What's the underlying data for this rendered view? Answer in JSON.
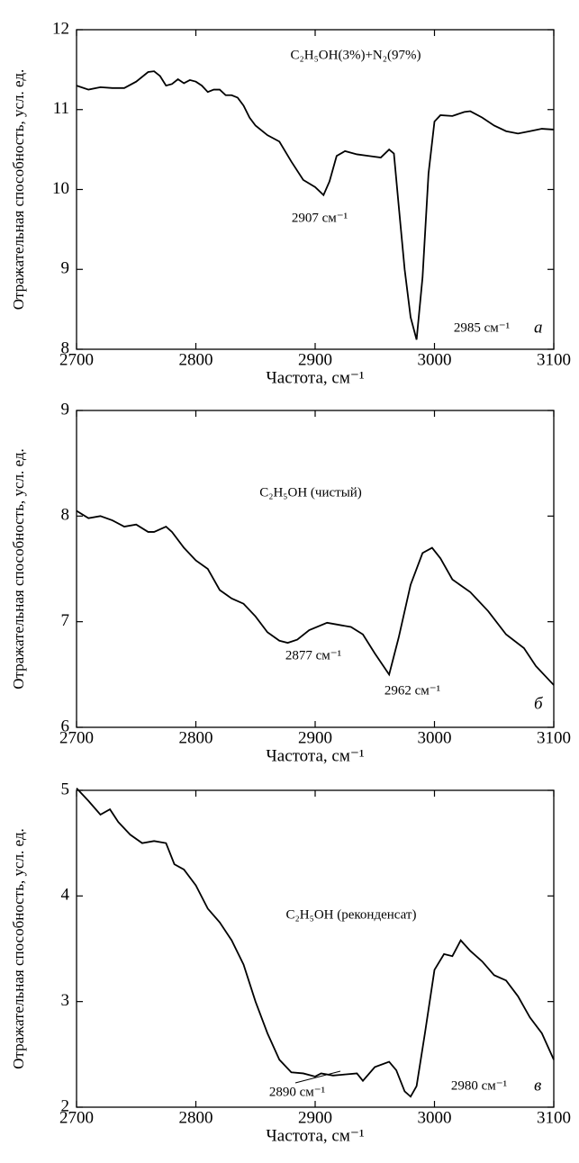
{
  "chart_data": [
    {
      "type": "line",
      "panel_label": "а",
      "annotations": [
        "C₂H₅OH(3%)+N₂(97%)",
        "2907 см⁻¹",
        "2985 см⁻¹"
      ],
      "xlabel": "Частота, см⁻¹",
      "ylabel": "Отражательная способность, усл. ед.",
      "xlim": [
        2700,
        3100
      ],
      "xticks": [
        2700,
        2800,
        2900,
        3000,
        3100
      ],
      "ylim": [
        8,
        12
      ],
      "yticks": [
        8,
        9,
        10,
        11,
        12
      ],
      "color": "#000000",
      "x": [
        2700,
        2710,
        2720,
        2730,
        2740,
        2750,
        2760,
        2765,
        2770,
        2775,
        2780,
        2785,
        2790,
        2795,
        2800,
        2805,
        2810,
        2815,
        2820,
        2825,
        2830,
        2835,
        2840,
        2845,
        2850,
        2860,
        2870,
        2880,
        2890,
        2900,
        2907,
        2912,
        2918,
        2925,
        2935,
        2945,
        2955,
        2962,
        2966,
        2970,
        2975,
        2980,
        2985,
        2990,
        2995,
        3000,
        3005,
        3015,
        3025,
        3030,
        3040,
        3050,
        3060,
        3070,
        3080,
        3090,
        3100
      ],
      "values": [
        11.3,
        11.25,
        11.28,
        11.27,
        11.27,
        11.35,
        11.47,
        11.48,
        11.42,
        11.3,
        11.32,
        11.38,
        11.33,
        11.37,
        11.35,
        11.3,
        11.22,
        11.25,
        11.25,
        11.18,
        11.18,
        11.15,
        11.05,
        10.9,
        10.8,
        10.68,
        10.6,
        10.35,
        10.12,
        10.03,
        9.93,
        10.1,
        10.42,
        10.48,
        10.44,
        10.42,
        10.4,
        10.5,
        10.45,
        9.8,
        9.0,
        8.4,
        8.12,
        8.9,
        10.2,
        10.85,
        10.93,
        10.92,
        10.97,
        10.98,
        10.9,
        10.8,
        10.73,
        10.7,
        10.73,
        10.76,
        10.75
      ]
    },
    {
      "type": "line",
      "panel_label": "б",
      "annotations": [
        "C₂H₅OH (чистый)",
        "2877 см⁻¹",
        "2962 см⁻¹"
      ],
      "xlabel": "Частота, см⁻¹",
      "ylabel": "Отражательная способность, усл. ед.",
      "xlim": [
        2700,
        3100
      ],
      "xticks": [
        2700,
        2800,
        2900,
        3000,
        3100
      ],
      "ylim": [
        6,
        9
      ],
      "yticks": [
        6,
        7,
        8,
        9
      ],
      "color": "#000000",
      "x": [
        2700,
        2710,
        2720,
        2730,
        2740,
        2750,
        2760,
        2765,
        2775,
        2780,
        2790,
        2800,
        2810,
        2820,
        2830,
        2840,
        2850,
        2860,
        2870,
        2877,
        2885,
        2895,
        2910,
        2920,
        2930,
        2940,
        2950,
        2962,
        2970,
        2980,
        2990,
        2998,
        3005,
        3015,
        3030,
        3045,
        3060,
        3075,
        3085,
        3100
      ],
      "values": [
        8.05,
        7.98,
        8.0,
        7.96,
        7.9,
        7.92,
        7.85,
        7.85,
        7.9,
        7.85,
        7.7,
        7.58,
        7.5,
        7.3,
        7.22,
        7.17,
        7.05,
        6.9,
        6.82,
        6.8,
        6.83,
        6.92,
        6.99,
        6.97,
        6.95,
        6.88,
        6.7,
        6.5,
        6.85,
        7.35,
        7.65,
        7.7,
        7.6,
        7.4,
        7.28,
        7.1,
        6.88,
        6.75,
        6.58,
        6.4
      ]
    },
    {
      "type": "line",
      "panel_label": "в",
      "annotations": [
        "C₂H₅OH (реконденсат)",
        "2890 см⁻¹",
        "2980 см⁻¹"
      ],
      "xlabel": "Частота, см⁻¹",
      "ylabel": "Отражательная способность, усл. ед.",
      "xlim": [
        2700,
        3100
      ],
      "xticks": [
        2700,
        2800,
        2900,
        3000,
        3100
      ],
      "ylim": [
        2,
        5
      ],
      "yticks": [
        2,
        3,
        4,
        5
      ],
      "color": "#000000",
      "x": [
        2700,
        2710,
        2720,
        2728,
        2735,
        2745,
        2755,
        2765,
        2775,
        2782,
        2790,
        2800,
        2810,
        2820,
        2830,
        2840,
        2850,
        2860,
        2870,
        2880,
        2890,
        2900,
        2905,
        2915,
        2925,
        2935,
        2940,
        2950,
        2962,
        2968,
        2975,
        2980,
        2985,
        2992,
        3000,
        3008,
        3015,
        3022,
        3030,
        3040,
        3050,
        3060,
        3070,
        3080,
        3090,
        3100
      ],
      "values": [
        5.02,
        4.9,
        4.77,
        4.82,
        4.7,
        4.58,
        4.5,
        4.52,
        4.5,
        4.3,
        4.25,
        4.1,
        3.88,
        3.75,
        3.58,
        3.35,
        3.0,
        2.7,
        2.45,
        2.33,
        2.32,
        2.29,
        2.32,
        2.3,
        2.31,
        2.32,
        2.25,
        2.38,
        2.43,
        2.35,
        2.15,
        2.1,
        2.2,
        2.7,
        3.3,
        3.45,
        3.43,
        3.58,
        3.48,
        3.38,
        3.25,
        3.2,
        3.05,
        2.85,
        2.7,
        2.45
      ]
    }
  ]
}
